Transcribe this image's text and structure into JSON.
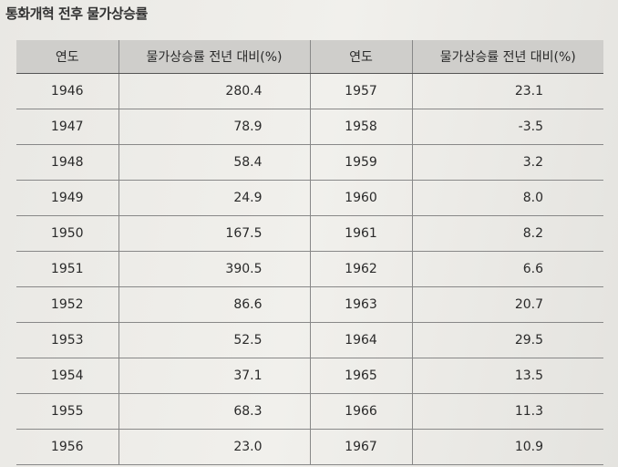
{
  "title": "통화개혁 전후 물가상승률",
  "table": {
    "header": [
      "연도",
      "물가상승률 전년 대비(%)",
      "연도",
      "물가상승률 전년 대비(%)"
    ],
    "rows": [
      [
        "1946",
        "280.4",
        "1957",
        "23.1"
      ],
      [
        "1947",
        "78.9",
        "1958",
        "-3.5"
      ],
      [
        "1948",
        "58.4",
        "1959",
        "3.2"
      ],
      [
        "1949",
        "24.9",
        "1960",
        "8.0"
      ],
      [
        "1950",
        "167.5",
        "1961",
        "8.2"
      ],
      [
        "1951",
        "390.5",
        "1962",
        "6.6"
      ],
      [
        "1952",
        "86.6",
        "1963",
        "20.7"
      ],
      [
        "1953",
        "52.5",
        "1964",
        "29.5"
      ],
      [
        "1954",
        "37.1",
        "1965",
        "13.5"
      ],
      [
        "1955",
        "68.3",
        "1966",
        "11.3"
      ],
      [
        "1956",
        "23.0",
        "1967",
        "10.9"
      ]
    ]
  }
}
